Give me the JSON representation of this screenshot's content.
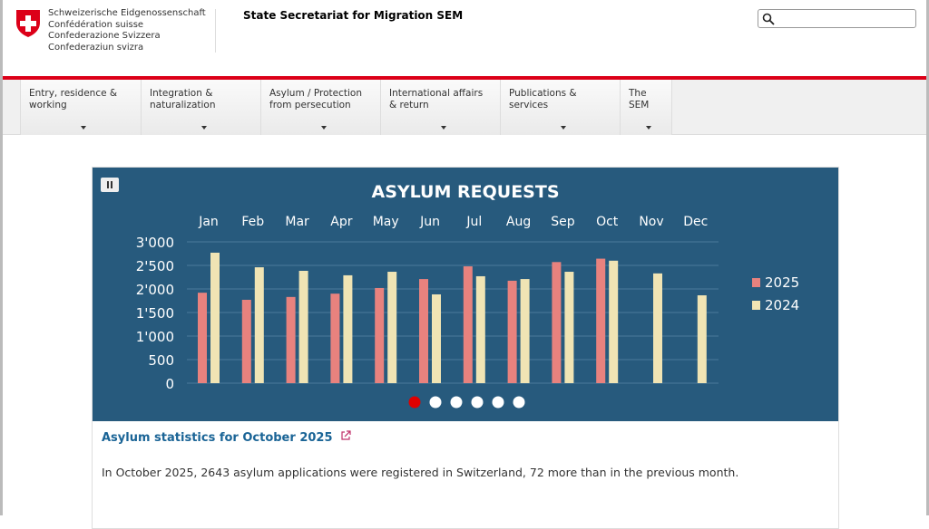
{
  "header": {
    "confederation": [
      "Schweizerische Eidgenossenschaft",
      "Confédération suisse",
      "Confederazione Svizzera",
      "Confederaziun svizra"
    ],
    "title": "State Secretariat for Migration SEM",
    "search_placeholder": ""
  },
  "nav": [
    {
      "label": "Entry, residence & working"
    },
    {
      "label": "Integration & naturalization"
    },
    {
      "label": "Asylum / Protection from persecution"
    },
    {
      "label": "International affairs & return"
    },
    {
      "label": "Publications & services"
    },
    {
      "label": "The SEM"
    }
  ],
  "chart_data": {
    "type": "bar",
    "title": "ASYLUM REQUESTS",
    "categories": [
      "Jan",
      "Feb",
      "Mar",
      "Apr",
      "May",
      "Jun",
      "Jul",
      "Aug",
      "Sep",
      "Oct",
      "Nov",
      "Dec"
    ],
    "series": [
      {
        "name": "2025",
        "color": "#e8827e",
        "values": [
          1920,
          1770,
          1830,
          1900,
          2020,
          2210,
          2480,
          2175,
          2571,
          2643,
          null,
          null
        ]
      },
      {
        "name": "2024",
        "color": "#f0e4b4",
        "values": [
          2770,
          2460,
          2385,
          2290,
          2365,
          1885,
          2270,
          2210,
          2365,
          2600,
          2330,
          1865
        ]
      }
    ],
    "yticks": [
      "0",
      "500",
      "1'000",
      "1'500",
      "2'000",
      "2'500",
      "3'000"
    ],
    "ylim": [
      0,
      3000
    ],
    "grid": true,
    "legend": "right"
  },
  "carousel": {
    "slides": 6,
    "active": 0,
    "active_color": "#e00000"
  },
  "article": {
    "link": "Asylum statistics for October 2025",
    "text": "In October 2025, 2643 asylum applications were registered in Switzerland, 72 more than in the previous month."
  }
}
